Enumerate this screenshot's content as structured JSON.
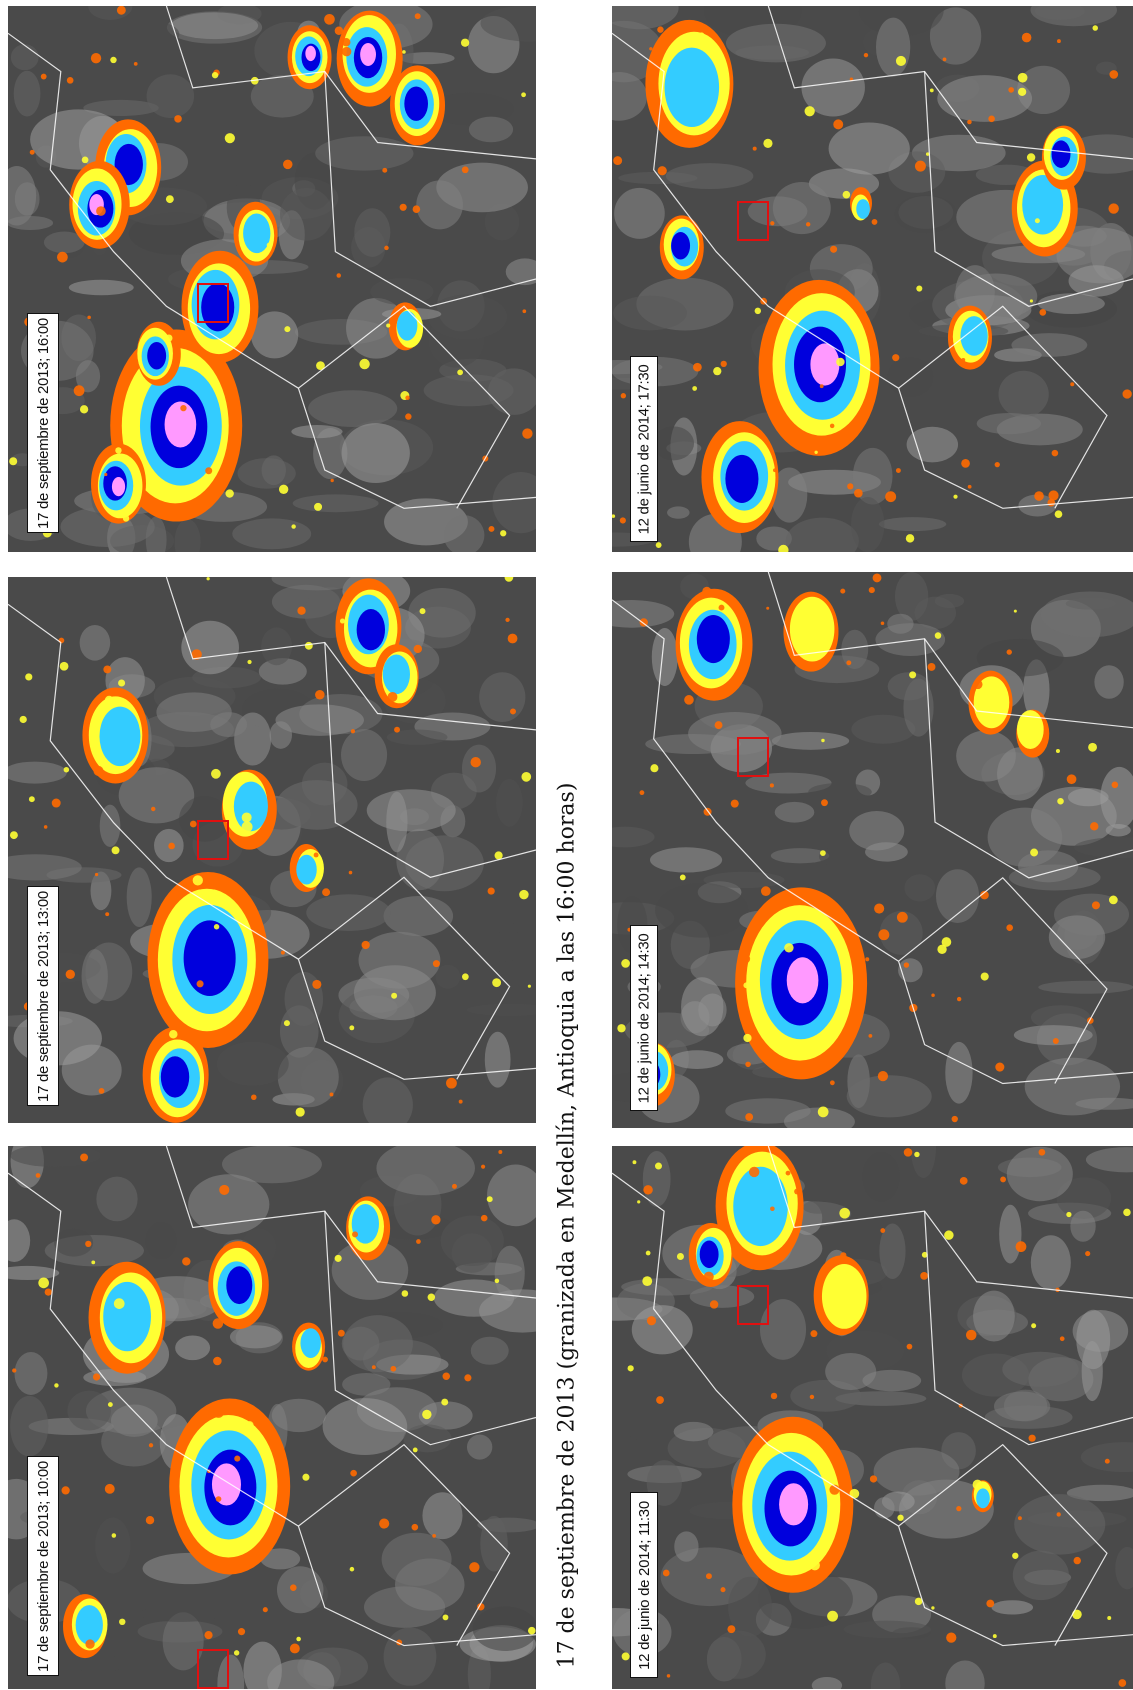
{
  "caption": "17 de septiembre de 2013 (granizada en Medellín, Antioquia a las 16:00 horas)",
  "panels": [
    {
      "label": "17 de septiembre de 2013; 16:00"
    },
    {
      "label": "17 de septiembre de 2013; 13:00"
    },
    {
      "label": "17 de septiembre de 2013; 10:00"
    },
    {
      "label": "12 de junio de 2014; 17:30"
    },
    {
      "label": "12 de junio de 2014; 14:30"
    },
    {
      "label": "12 de junio de 2014; 11:30"
    }
  ],
  "colors": {
    "background_gray": "#4a4a4a",
    "cloud_gray": "#9a9a9a",
    "orange": "#ff6a00",
    "yellow": "#ffff33",
    "cyan": "#33ccff",
    "blue": "#0000dd",
    "pink": "#ff99ff",
    "border_white": "#ffffff",
    "marker_red": "#e01010"
  }
}
